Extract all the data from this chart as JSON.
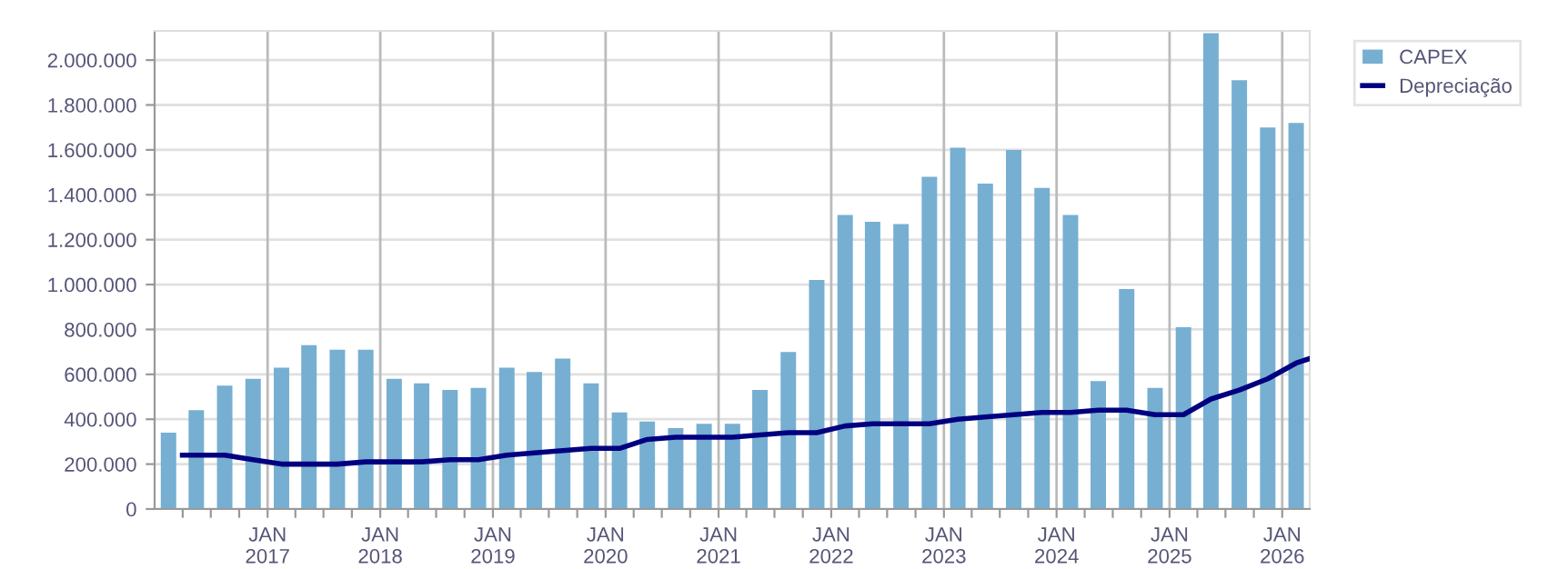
{
  "chart_data": {
    "type": "bar",
    "x": [
      "2016-02-15",
      "2016-05-15",
      "2016-08-15",
      "2016-11-15",
      "2017-02-15",
      "2017-05-15",
      "2017-08-15",
      "2017-11-15",
      "2018-02-15",
      "2018-05-15",
      "2018-08-15",
      "2018-11-15",
      "2019-02-15",
      "2019-05-15",
      "2019-08-15",
      "2019-11-15",
      "2020-02-15",
      "2020-05-15",
      "2020-08-15",
      "2020-11-15",
      "2021-02-15",
      "2021-05-15",
      "2021-08-15",
      "2021-11-15",
      "2022-02-15",
      "2022-05-15",
      "2022-08-15",
      "2022-11-15",
      "2023-02-15",
      "2023-05-15",
      "2023-08-15",
      "2023-11-15",
      "2024-02-15",
      "2024-05-15",
      "2024-08-15",
      "2024-11-15",
      "2025-02-15",
      "2025-05-15",
      "2025-08-15",
      "2025-11-15",
      "2026-02-15"
    ],
    "series": [
      {
        "name": "CAPEX",
        "color": "#76afd1",
        "values": [
          340000,
          440000,
          550000,
          580000,
          630000,
          730000,
          710000,
          710000,
          580000,
          560000,
          530000,
          540000,
          630000,
          610000,
          670000,
          560000,
          430000,
          390000,
          360000,
          380000,
          380000,
          530000,
          700000,
          1020000,
          1310000,
          1280000,
          1270000,
          1480000,
          1610000,
          1450000,
          1600000,
          1430000,
          1310000,
          570000,
          980000,
          540000,
          810000,
          2120000,
          1910000,
          1700000,
          1720000
        ]
      },
      {
        "name": "Depreciação",
        "type": "line",
        "color": "#000080",
        "x": [
          "2016-03-31",
          "2016-05-15",
          "2016-08-15",
          "2016-11-15",
          "2017-02-15",
          "2017-05-15",
          "2017-08-15",
          "2017-11-15",
          "2018-02-15",
          "2018-05-15",
          "2018-08-15",
          "2018-11-15",
          "2019-02-15",
          "2019-05-15",
          "2019-08-15",
          "2019-11-15",
          "2020-02-15",
          "2020-05-15",
          "2020-08-15",
          "2020-11-15",
          "2021-02-15",
          "2021-05-15",
          "2021-08-15",
          "2021-11-15",
          "2022-02-15",
          "2022-05-15",
          "2022-08-15",
          "2022-11-15",
          "2023-02-15",
          "2023-05-15",
          "2023-08-15",
          "2023-11-15",
          "2024-02-15",
          "2024-05-15",
          "2024-08-15",
          "2024-11-15",
          "2025-02-15",
          "2025-05-15",
          "2025-08-15",
          "2025-11-15",
          "2026-02-15",
          "2026-03-31"
        ],
        "values": [
          240000,
          240000,
          240000,
          220000,
          200000,
          200000,
          200000,
          210000,
          210000,
          210000,
          220000,
          220000,
          240000,
          250000,
          260000,
          270000,
          270000,
          310000,
          320000,
          320000,
          320000,
          330000,
          340000,
          340000,
          370000,
          380000,
          380000,
          380000,
          400000,
          410000,
          420000,
          430000,
          430000,
          440000,
          440000,
          420000,
          420000,
          490000,
          530000,
          580000,
          650000,
          670000
        ]
      }
    ],
    "xlim": [
      "2016-01-01",
      "2026-03-31"
    ],
    "xticks": [
      {
        "value": "2016-04-01",
        "label": null
      },
      {
        "value": "2016-07-01",
        "label": null
      },
      {
        "value": "2016-10-01",
        "label": null
      },
      {
        "value": "2017-01-01",
        "label": "JAN\n2017"
      },
      {
        "value": "2017-04-01",
        "label": null
      },
      {
        "value": "2017-07-01",
        "label": null
      },
      {
        "value": "2017-10-01",
        "label": null
      },
      {
        "value": "2018-01-01",
        "label": "JAN\n2018"
      },
      {
        "value": "2018-04-01",
        "label": null
      },
      {
        "value": "2018-07-01",
        "label": null
      },
      {
        "value": "2018-10-01",
        "label": null
      },
      {
        "value": "2019-01-01",
        "label": "JAN\n2019"
      },
      {
        "value": "2019-04-01",
        "label": null
      },
      {
        "value": "2019-07-01",
        "label": null
      },
      {
        "value": "2019-10-01",
        "label": null
      },
      {
        "value": "2020-01-01",
        "label": "JAN\n2020"
      },
      {
        "value": "2020-04-01",
        "label": null
      },
      {
        "value": "2020-07-01",
        "label": null
      },
      {
        "value": "2020-10-01",
        "label": null
      },
      {
        "value": "2021-01-01",
        "label": "JAN\n2021"
      },
      {
        "value": "2021-04-01",
        "label": null
      },
      {
        "value": "2021-07-01",
        "label": null
      },
      {
        "value": "2021-10-01",
        "label": null
      },
      {
        "value": "2022-01-01",
        "label": "JAN\n2022"
      },
      {
        "value": "2022-04-01",
        "label": null
      },
      {
        "value": "2022-07-01",
        "label": null
      },
      {
        "value": "2022-10-01",
        "label": null
      },
      {
        "value": "2023-01-01",
        "label": "JAN\n2023"
      },
      {
        "value": "2023-04-01",
        "label": null
      },
      {
        "value": "2023-07-01",
        "label": null
      },
      {
        "value": "2023-10-01",
        "label": null
      },
      {
        "value": "2024-01-01",
        "label": "JAN\n2024"
      },
      {
        "value": "2024-04-01",
        "label": null
      },
      {
        "value": "2024-07-01",
        "label": null
      },
      {
        "value": "2024-10-01",
        "label": null
      },
      {
        "value": "2025-01-01",
        "label": "JAN\n2025"
      },
      {
        "value": "2025-04-01",
        "label": null
      },
      {
        "value": "2025-07-01",
        "label": null
      },
      {
        "value": "2025-10-01",
        "label": null
      },
      {
        "value": "2026-01-01",
        "label": "JAN\n2026"
      }
    ],
    "ylim": [
      0,
      2130000
    ],
    "yticks": [
      {
        "value": 0,
        "label": "0"
      },
      {
        "value": 200000,
        "label": "200.000"
      },
      {
        "value": 400000,
        "label": "400.000"
      },
      {
        "value": 600000,
        "label": "600.000"
      },
      {
        "value": 800000,
        "label": "800.000"
      },
      {
        "value": 1000000,
        "label": "1.000.000"
      },
      {
        "value": 1200000,
        "label": "1.200.000"
      },
      {
        "value": 1400000,
        "label": "1.400.000"
      },
      {
        "value": 1600000,
        "label": "1.600.000"
      },
      {
        "value": 1800000,
        "label": "1.800.000"
      },
      {
        "value": 2000000,
        "label": "2.000.000"
      }
    ],
    "grid": true,
    "legend": "top right",
    "marker": "none",
    "line_style": "solid"
  }
}
